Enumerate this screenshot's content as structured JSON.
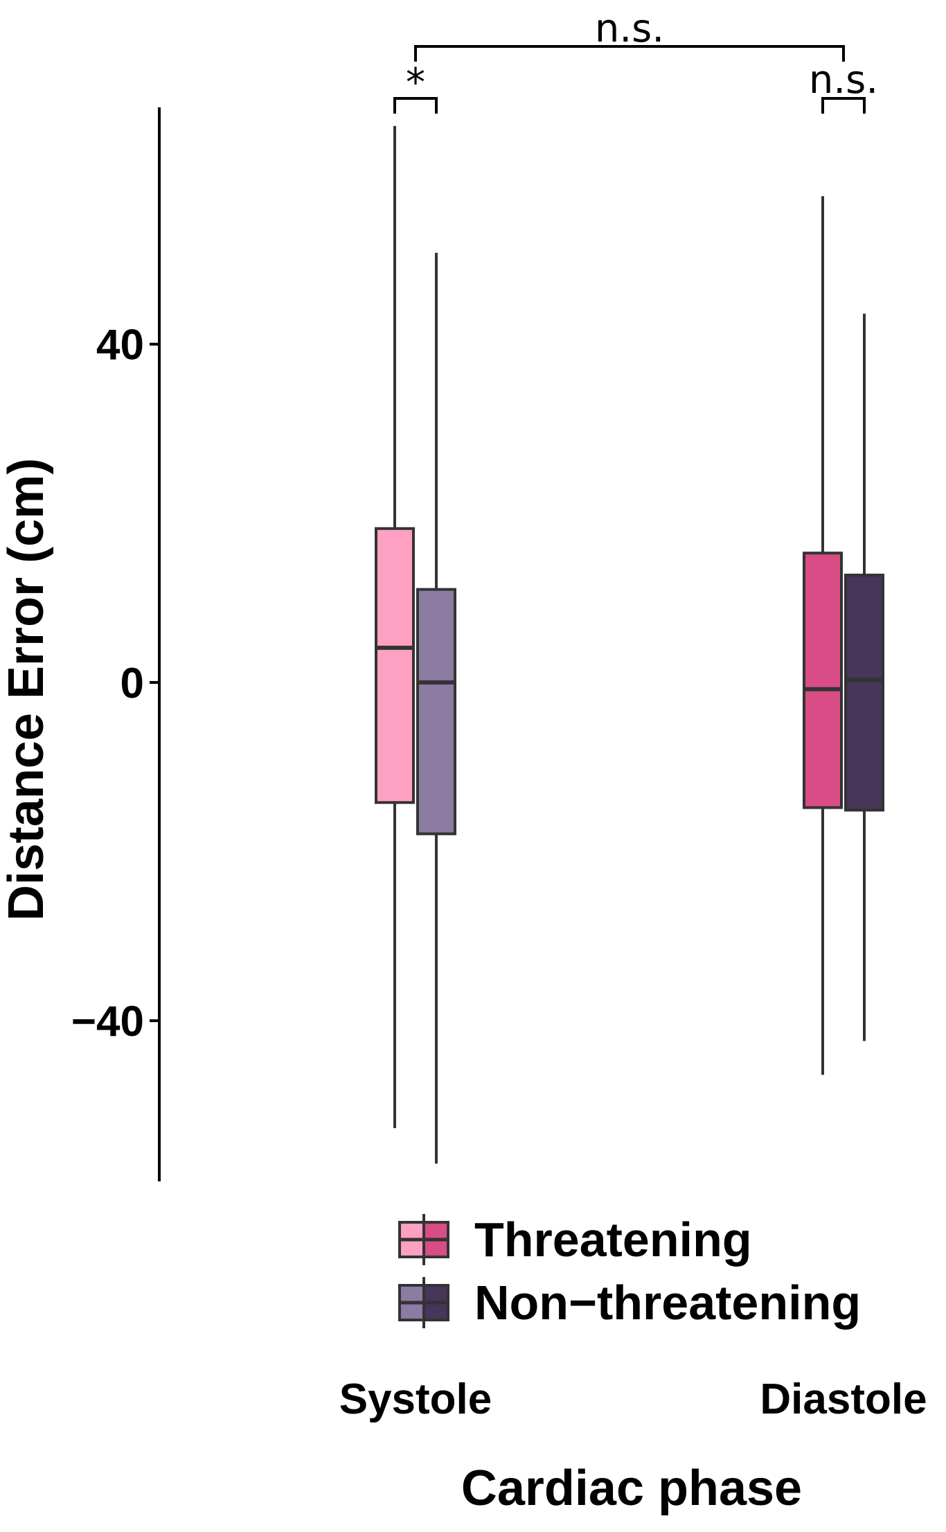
{
  "chart_data": {
    "type": "boxplot",
    "title": "",
    "xlabel": "Cardiac phase",
    "ylabel": "Distance Error (cm)",
    "ylim": [
      -59,
      68
    ],
    "yticks": [
      {
        "value": 40,
        "label": "40"
      },
      {
        "value": 0,
        "label": "0"
      },
      {
        "value": -40,
        "label": "−40"
      }
    ],
    "categories": [
      "Systole",
      "Diastole"
    ],
    "series": [
      {
        "name": "Threatening",
        "boxes": [
          {
            "category": "Systole",
            "min": -52.7,
            "q1": -14.2,
            "median": 4.1,
            "q3": 18.2,
            "max": 65.8,
            "color": "#fda0c2"
          },
          {
            "category": "Diastole",
            "min": -46.4,
            "q1": -14.8,
            "median": -0.8,
            "q3": 15.3,
            "max": 57.5,
            "color": "#d84d86"
          }
        ]
      },
      {
        "name": "Non−threatening",
        "boxes": [
          {
            "category": "Systole",
            "min": -56.9,
            "q1": -17.9,
            "median": 0.0,
            "q3": 11.0,
            "max": 50.8,
            "color": "#8c7ba3"
          },
          {
            "category": "Diastole",
            "min": -42.4,
            "q1": -15.1,
            "median": 0.3,
            "q3": 12.7,
            "max": 43.6,
            "color": "#47355a"
          }
        ]
      }
    ],
    "annotations": [
      {
        "label": "*",
        "between": "Systole: Threatening vs Non−threatening"
      },
      {
        "label": "n.s.",
        "between": "Diastole: Threatening vs Non−threatening"
      },
      {
        "label": "n.s.",
        "between": "Systole vs Diastole"
      }
    ],
    "legend": {
      "position": "bottom",
      "entries": [
        {
          "label": "Threatening",
          "colors": [
            "#fda0c2",
            "#d84d86"
          ]
        },
        {
          "label": "Non−threatening",
          "colors": [
            "#8c7ba3",
            "#47355a"
          ]
        }
      ]
    },
    "grid": false
  }
}
